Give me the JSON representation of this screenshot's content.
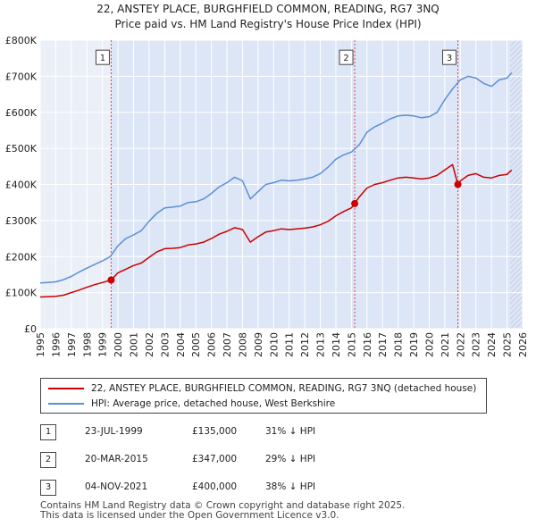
{
  "title_line1": "22, ANSTEY PLACE, BURGHFIELD COMMON, READING, RG7 3NQ",
  "title_line2": "Price paid vs. HM Land Registry's House Price Index (HPI)",
  "colors": {
    "red": "#cc0000",
    "blue": "#5b8fd4",
    "shade": "#dde6f7",
    "grid": "#ffffff",
    "vline": "#dd4444"
  },
  "legend": {
    "red_label": "22, ANSTEY PLACE, BURGHFIELD COMMON, READING, RG7 3NQ (detached house)",
    "blue_label": "HPI: Average price, detached house, West Berkshire"
  },
  "transactions": [
    {
      "num": "1",
      "date": "23-JUL-1999",
      "price": "£135,000",
      "hpi": "31% ↓ HPI"
    },
    {
      "num": "2",
      "date": "20-MAR-2015",
      "price": "£347,000",
      "hpi": "29% ↓ HPI"
    },
    {
      "num": "3",
      "date": "04-NOV-2021",
      "price": "£400,000",
      "hpi": "38% ↓ HPI"
    }
  ],
  "footer_line1": "Contains HM Land Registry data © Crown copyright and database right 2025.",
  "footer_line2": "This data is licensed under the Open Government Licence v3.0.",
  "chart_data": {
    "type": "line",
    "title": "22, ANSTEY PLACE, BURGHFIELD COMMON, READING, RG7 3NQ",
    "subtitle": "Price paid vs. HM Land Registry's House Price Index (HPI)",
    "xlabel": "",
    "ylabel": "",
    "xlim": [
      1995,
      2026
    ],
    "ylim": [
      0,
      800000
    ],
    "x_ticks": [
      "1995",
      "1996",
      "1997",
      "1998",
      "1999",
      "2000",
      "2001",
      "2002",
      "2003",
      "2004",
      "2005",
      "2006",
      "2007",
      "2008",
      "2009",
      "2010",
      "2011",
      "2012",
      "2013",
      "2014",
      "2015",
      "2016",
      "2017",
      "2018",
      "2019",
      "2020",
      "2021",
      "2022",
      "2023",
      "2024",
      "2025",
      "2026"
    ],
    "y_ticks": [
      {
        "value": 0,
        "label": "£0"
      },
      {
        "value": 100000,
        "label": "£100K"
      },
      {
        "value": 200000,
        "label": "£200K"
      },
      {
        "value": 300000,
        "label": "£300K"
      },
      {
        "value": 400000,
        "label": "£400K"
      },
      {
        "value": 500000,
        "label": "£500K"
      },
      {
        "value": 600000,
        "label": "£600K"
      },
      {
        "value": 700000,
        "label": "£700K"
      },
      {
        "value": 800000,
        "label": "£800K"
      }
    ],
    "future_shade_from": 2025.2,
    "series": [
      {
        "name": "HPI: Average price, detached house, West Berkshire",
        "color": "#5b8fd4",
        "x": [
          1995,
          1995.5,
          1996,
          1996.5,
          1997,
          1997.5,
          1998,
          1998.5,
          1999,
          1999.5,
          2000,
          2000.5,
          2001,
          2001.5,
          2002,
          2002.5,
          2003,
          2003.5,
          2004,
          2004.5,
          2005,
          2005.5,
          2006,
          2006.5,
          2007,
          2007.5,
          2008,
          2008.5,
          2009,
          2009.5,
          2010,
          2010.5,
          2011,
          2011.5,
          2012,
          2012.5,
          2013,
          2013.5,
          2014,
          2014.5,
          2015,
          2015.5,
          2016,
          2016.5,
          2017,
          2017.5,
          2018,
          2018.5,
          2019,
          2019.5,
          2020,
          2020.5,
          2021,
          2021.5,
          2022,
          2022.5,
          2023,
          2023.5,
          2024,
          2024.5,
          2025,
          2025.3
        ],
        "y": [
          127000,
          128000,
          130000,
          136000,
          145000,
          157000,
          168000,
          178000,
          188000,
          200000,
          230000,
          250000,
          260000,
          272000,
          298000,
          320000,
          335000,
          337000,
          340000,
          350000,
          352000,
          360000,
          375000,
          393000,
          405000,
          420000,
          410000,
          360000,
          380000,
          400000,
          405000,
          412000,
          410000,
          412000,
          415000,
          420000,
          430000,
          448000,
          470000,
          482000,
          490000,
          510000,
          545000,
          560000,
          570000,
          582000,
          590000,
          592000,
          590000,
          585000,
          588000,
          600000,
          635000,
          665000,
          690000,
          700000,
          695000,
          680000,
          672000,
          690000,
          695000,
          710000
        ]
      },
      {
        "name": "22, ANSTEY PLACE, BURGHFIELD COMMON, READING, RG7 3NQ (detached house)",
        "color": "#cc0000",
        "x": [
          1995,
          1995.5,
          1996,
          1996.5,
          1997,
          1997.5,
          1998,
          1998.5,
          1999,
          1999.56,
          2000,
          2000.5,
          2001,
          2001.5,
          2002,
          2002.5,
          2003,
          2003.5,
          2004,
          2004.5,
          2005,
          2005.5,
          2006,
          2006.5,
          2007,
          2007.5,
          2008,
          2008.5,
          2009,
          2009.5,
          2010,
          2010.5,
          2011,
          2011.5,
          2012,
          2012.5,
          2013,
          2013.5,
          2014,
          2014.5,
          2015,
          2015.21,
          2015.5,
          2016,
          2016.5,
          2017,
          2017.5,
          2018,
          2018.5,
          2019,
          2019.5,
          2020,
          2020.5,
          2021,
          2021.5,
          2021.84,
          2022,
          2022.5,
          2023,
          2023.5,
          2024,
          2024.5,
          2025,
          2025.3
        ],
        "y": [
          88000,
          89000,
          90000,
          93000,
          100000,
          107000,
          115000,
          122000,
          128000,
          135000,
          155000,
          165000,
          175000,
          182000,
          198000,
          213000,
          222000,
          223000,
          225000,
          232000,
          235000,
          240000,
          250000,
          262000,
          270000,
          280000,
          275000,
          240000,
          255000,
          268000,
          272000,
          277000,
          275000,
          277000,
          279000,
          282000,
          288000,
          298000,
          313000,
          325000,
          335000,
          347000,
          365000,
          390000,
          400000,
          405000,
          412000,
          418000,
          420000,
          418000,
          415000,
          418000,
          425000,
          440000,
          455000,
          400000,
          410000,
          425000,
          430000,
          420000,
          418000,
          425000,
          428000,
          440000
        ]
      }
    ],
    "transactions": [
      {
        "label": "1",
        "x": 1999.56,
        "y": 135000,
        "box_y": 750000
      },
      {
        "label": "2",
        "x": 2015.21,
        "y": 347000,
        "box_y": 750000
      },
      {
        "label": "3",
        "x": 2021.84,
        "y": 400000,
        "box_y": 750000
      }
    ]
  }
}
